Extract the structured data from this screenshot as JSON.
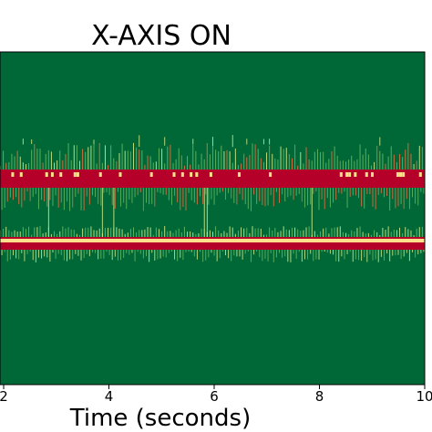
{
  "chart_data": {
    "type": "heatmap",
    "title": "X-AXIS ON",
    "xlabel": "Time (seconds)",
    "ylabel": "",
    "xlim": [
      2,
      10
    ],
    "x_ticks": [
      2,
      4,
      6,
      8,
      10
    ],
    "x_tick_labels": [
      "2",
      "4",
      "6",
      "8",
      "10"
    ],
    "grid": false,
    "legend": "none",
    "colors": {
      "background": "#006837",
      "band": "#b5002a",
      "highlight": "#fee08b",
      "speckle_light": "#d9ef8b",
      "speckle_mid": "#66bd63",
      "speckle_orange": "#f46d43"
    },
    "bands": [
      {
        "name": "upper-band",
        "intensity": "high"
      },
      {
        "name": "lower-band",
        "intensity": "high"
      }
    ]
  }
}
